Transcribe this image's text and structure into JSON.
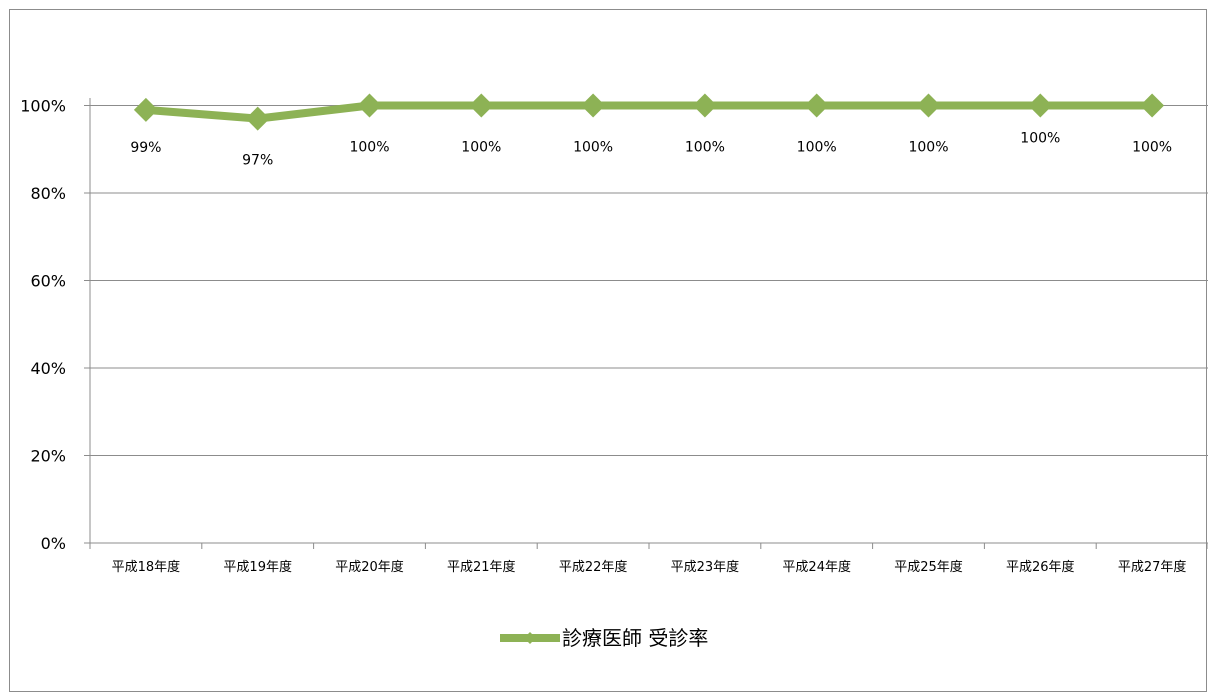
{
  "chart_data": {
    "type": "line",
    "categories": [
      "平成18年度",
      "平成19年度",
      "平成20年度",
      "平成21年度",
      "平成22年度",
      "平成23年度",
      "平成24年度",
      "平成25年度",
      "平成26年度",
      "平成27年度"
    ],
    "series": [
      {
        "name": "診療医師 受診率",
        "values": [
          99,
          97,
          100,
          100,
          100,
          100,
          100,
          100,
          100,
          100
        ],
        "labels": [
          "99%",
          "97%",
          "100%",
          "100%",
          "100%",
          "100%",
          "100%",
          "100%",
          "100%",
          "100%"
        ],
        "color": "#8db255"
      }
    ],
    "yticks": [
      "0%",
      "20%",
      "40%",
      "60%",
      "80%",
      "100%"
    ],
    "ylim": [
      0,
      120
    ],
    "grid": true,
    "legend": "bottom"
  }
}
